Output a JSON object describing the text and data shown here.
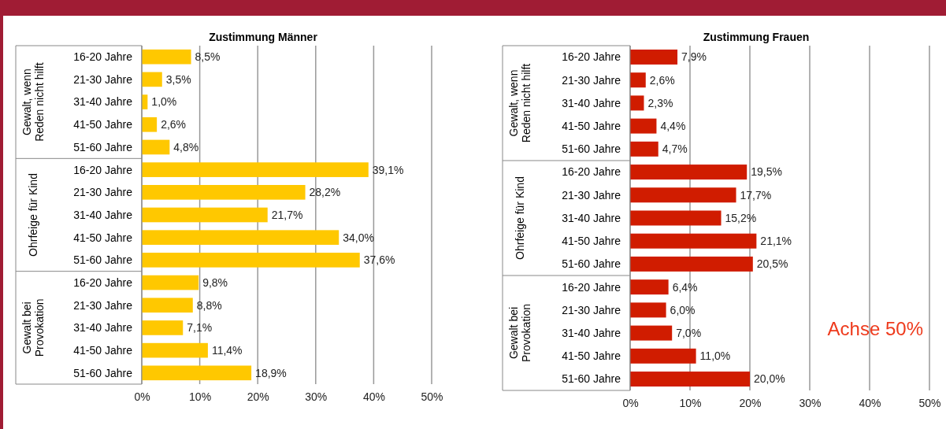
{
  "chart_data": [
    {
      "type": "bar",
      "orientation": "horizontal",
      "title": "Zustimmung Männer",
      "categories": [
        "16-20 Jahre",
        "21-30 Jahre",
        "31-40 Jahre",
        "41-50 Jahre",
        "51-60 Jahre",
        "16-20 Jahre",
        "21-30 Jahre",
        "31-40 Jahre",
        "41-50 Jahre",
        "51-60 Jahre",
        "16-20 Jahre",
        "21-30 Jahre",
        "31-40 Jahre",
        "41-50 Jahre",
        "51-60 Jahre"
      ],
      "values": [
        8.5,
        3.5,
        1.0,
        2.6,
        4.8,
        39.1,
        28.2,
        21.7,
        34.0,
        37.6,
        9.8,
        8.8,
        7.1,
        11.4,
        18.9
      ],
      "value_labels": [
        "8,5%",
        "3,5%",
        "1,0%",
        "2,6%",
        "4,8%",
        "39,1%",
        "28,2%",
        "21,7%",
        "34,0%",
        "37,6%",
        "9,8%",
        "8,8%",
        "7,1%",
        "11,4%",
        "18,9%"
      ],
      "color": "#ffc800",
      "xlim": [
        0,
        50
      ],
      "xticks": [
        {
          "value": 0,
          "label": "0%"
        },
        {
          "value": 10,
          "label": "10%"
        },
        {
          "value": 20,
          "label": "20%"
        },
        {
          "value": 30,
          "label": "30%"
        },
        {
          "value": 40,
          "label": "40%"
        },
        {
          "value": 50,
          "label": "50%"
        }
      ],
      "grid": "x",
      "annotations": [
        "Gewalt, wenn\nReden nicht hilft",
        "Ohrfeige für Kind",
        "Gewalt bei\nProvokation"
      ]
    },
    {
      "type": "bar",
      "orientation": "horizontal",
      "title": "Zustimmung Frauen",
      "categories": [
        "16-20 Jahre",
        "21-30 Jahre",
        "31-40 Jahre",
        "41-50 Jahre",
        "51-60 Jahre",
        "16-20 Jahre",
        "21-30 Jahre",
        "31-40 Jahre",
        "41-50 Jahre",
        "51-60 Jahre",
        "16-20 Jahre",
        "21-30 Jahre",
        "31-40 Jahre",
        "41-50 Jahre",
        "51-60 Jahre"
      ],
      "values": [
        7.9,
        2.6,
        2.3,
        4.4,
        4.7,
        19.5,
        17.7,
        15.2,
        21.1,
        20.5,
        6.4,
        6.0,
        7.0,
        11.0,
        20.0
      ],
      "value_labels": [
        "7,9%",
        "2,6%",
        "2,3%",
        "4,4%",
        "4,7%",
        "19,5%",
        "17,7%",
        "15,2%",
        "21,1%",
        "20,5%",
        "6,4%",
        "6,0%",
        "7,0%",
        "11,0%",
        "20,0%"
      ],
      "color": "#d01c00",
      "xlim": [
        0,
        50
      ],
      "xticks": [
        {
          "value": 0,
          "label": "0%"
        },
        {
          "value": 10,
          "label": "10%"
        },
        {
          "value": 20,
          "label": "20%"
        },
        {
          "value": 30,
          "label": "30%"
        },
        {
          "value": 40,
          "label": "40%"
        },
        {
          "value": 50,
          "label": "50%"
        }
      ],
      "grid": "x",
      "annotations": [
        "Gewalt, wenn\nReden nicht hilft",
        "Ohrfeige für Kind",
        "Gewalt bei\nProvokation",
        "Achse 50%"
      ]
    }
  ]
}
